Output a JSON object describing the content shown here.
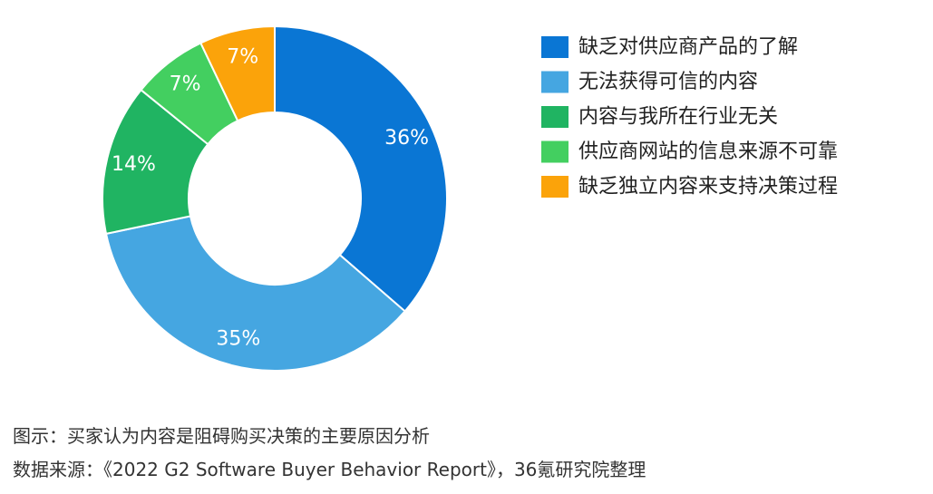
{
  "chart_data": {
    "type": "pie",
    "style": "donut",
    "categories": [
      "缺乏对供应商产品的了解",
      "无法获得可信的内容",
      "内容与我所在行业无关",
      "供应商网站的信息来源不可靠",
      "缺乏独立内容来支持决策过程"
    ],
    "values": [
      36,
      35,
      14,
      7,
      7
    ],
    "value_labels": [
      "36%",
      "35%",
      "14%",
      "7%",
      "7%"
    ],
    "colors": [
      "#0a76d4",
      "#45a6e1",
      "#20b462",
      "#43cf60",
      "#fba30a"
    ],
    "legend_position": "right"
  },
  "caption": {
    "title": "图示：买家认为内容是阻碍购买决策的主要原因分析",
    "source": "数据来源：《2022 G2 Software Buyer Behavior Report》，36氪研究院整理"
  }
}
